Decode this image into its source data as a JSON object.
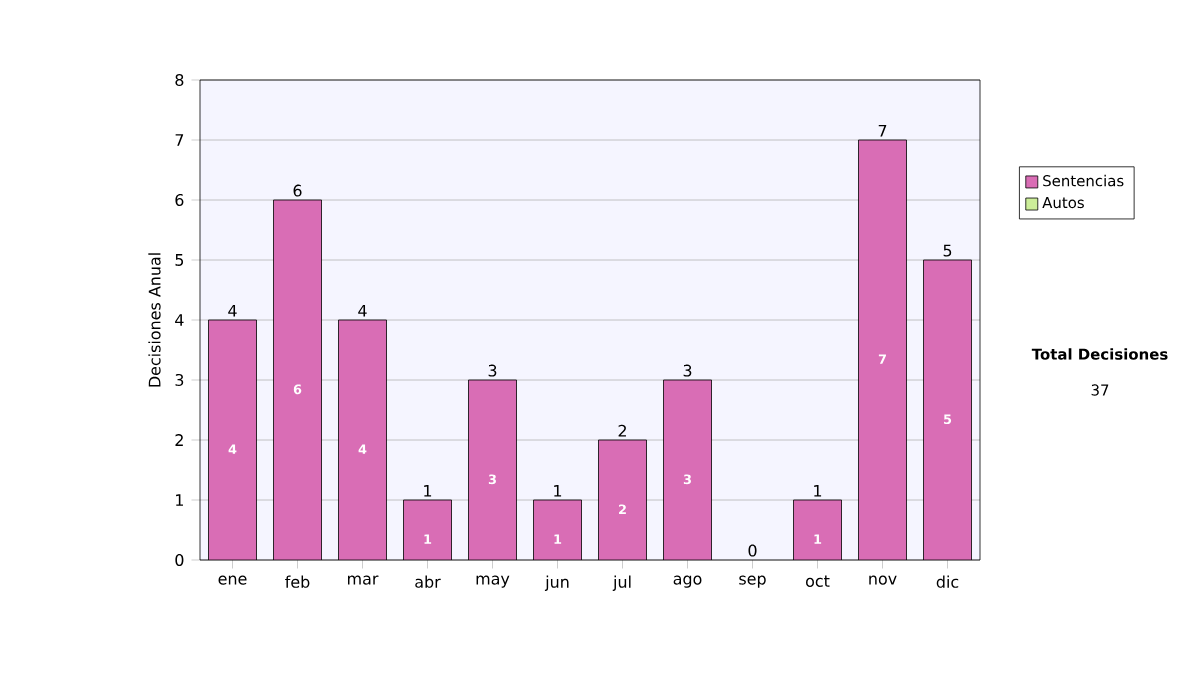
{
  "chart_data": {
    "type": "bar",
    "stacked": true,
    "ylabel": "Decisiones Anual",
    "categories": [
      "ene",
      "feb",
      "mar",
      "abr",
      "may",
      "jun",
      "jul",
      "ago",
      "sep",
      "oct",
      "nov",
      "dic"
    ],
    "series": [
      {
        "name": "Sentencias",
        "color": "#d96db5",
        "values": [
          4,
          6,
          4,
          1,
          3,
          1,
          2,
          3,
          0,
          1,
          7,
          5
        ],
        "value_labels": [
          "4",
          "6",
          "4",
          "1",
          "3",
          "1",
          "2",
          "3",
          null,
          "1",
          "7",
          "5"
        ]
      },
      {
        "name": "Autos",
        "color": "#ccee99",
        "values": [
          0,
          0,
          0,
          0,
          0,
          0,
          0,
          0,
          0,
          0,
          0,
          0
        ]
      }
    ],
    "totals": [
      "4",
      "6",
      "4",
      "1",
      "3",
      "1",
      "2",
      "3",
      "0",
      "1",
      "7",
      "5"
    ],
    "ylim": [
      0,
      8
    ],
    "yticks": [
      0,
      1,
      2,
      3,
      4,
      5,
      6,
      7,
      8
    ],
    "grid": "y",
    "legend": "right",
    "annotations": [
      "Total Decisiones",
      "37"
    ]
  }
}
